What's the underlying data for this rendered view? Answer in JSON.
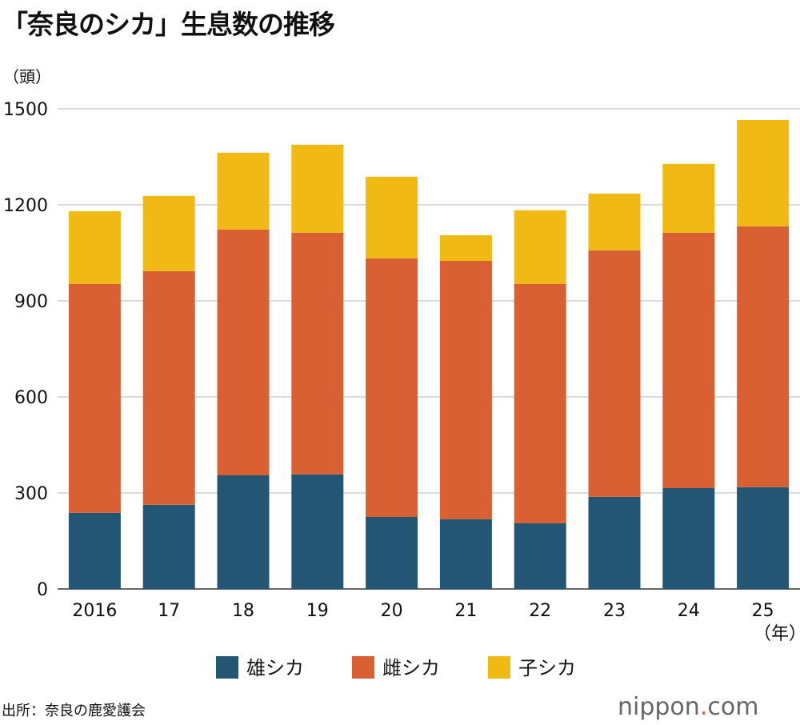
{
  "title": "「奈良のシカ」生息数の推移",
  "source": "出所：奈良の鹿愛護会",
  "logo": {
    "name": "nippon",
    "dot": ".",
    "tld": "com"
  },
  "chart_data": {
    "type": "bar",
    "stacked": true,
    "title": "「奈良のシカ」生息数の推移",
    "ylabel": "（頭）",
    "xlabel": "（年）",
    "ylim": [
      0,
      1500
    ],
    "yticks": [
      0,
      300,
      600,
      900,
      1200,
      1500
    ],
    "grid": true,
    "legend": "bottom",
    "categories": [
      "2016",
      "17",
      "18",
      "19",
      "20",
      "21",
      "22",
      "23",
      "24",
      "25"
    ],
    "series": [
      {
        "name": "雄シカ",
        "color": "#235574",
        "values": [
          238,
          263,
          355,
          358,
          225,
          218,
          205,
          288,
          315,
          318
        ]
      },
      {
        "name": "雌シカ",
        "color": "#d96032",
        "values": [
          715,
          730,
          768,
          755,
          808,
          807,
          748,
          770,
          798,
          815
        ]
      },
      {
        "name": "子シカ",
        "color": "#f1b914",
        "values": [
          227,
          235,
          240,
          275,
          255,
          80,
          230,
          177,
          215,
          332
        ]
      }
    ]
  }
}
